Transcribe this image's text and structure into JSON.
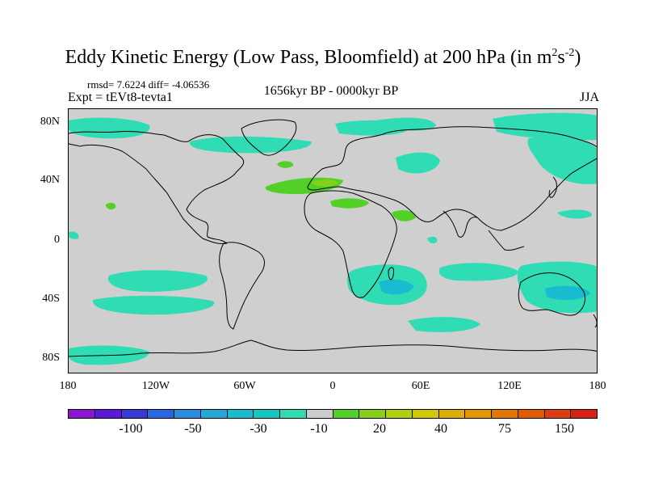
{
  "title": {
    "text": "Eddy Kinetic Energy (Low Pass, Bloomfield) at 200 hPa (in m",
    "sup1": "2",
    "mid": "s",
    "sup2": "-2",
    "end": ")"
  },
  "stats": "rmsd= 7.6224 diff= -4.06536",
  "expt": "Expt = tEVt8-tevta1",
  "period": "1656kyr BP - 0000kyr BP",
  "season": "JJA",
  "lat_labels": [
    "80N",
    "40N",
    "0",
    "40S",
    "80S"
  ],
  "lon_labels": [
    "180",
    "120W",
    "60W",
    "0",
    "60E",
    "120E",
    "180"
  ],
  "colorbar": {
    "colors": [
      "#8a16d4",
      "#5a1ad8",
      "#3a3ad8",
      "#2a66e0",
      "#2a8ee0",
      "#23a8d8",
      "#18bcd0",
      "#12c8c0",
      "#30dcb4",
      "#cccccc",
      "#52d028",
      "#86d018",
      "#b0d00a",
      "#d2c800",
      "#e0ae00",
      "#e69400",
      "#e27800",
      "#e05a00",
      "#e03a10",
      "#d82010"
    ],
    "labels": [
      "-100",
      "-50",
      "-30",
      "-10",
      "20",
      "40",
      "75",
      "150"
    ]
  },
  "fill_colors": {
    "cyan": "#30dcb4",
    "cyan_dark": "#18bcd0",
    "green": "#52d028",
    "yellowgreen": "#86d018"
  }
}
